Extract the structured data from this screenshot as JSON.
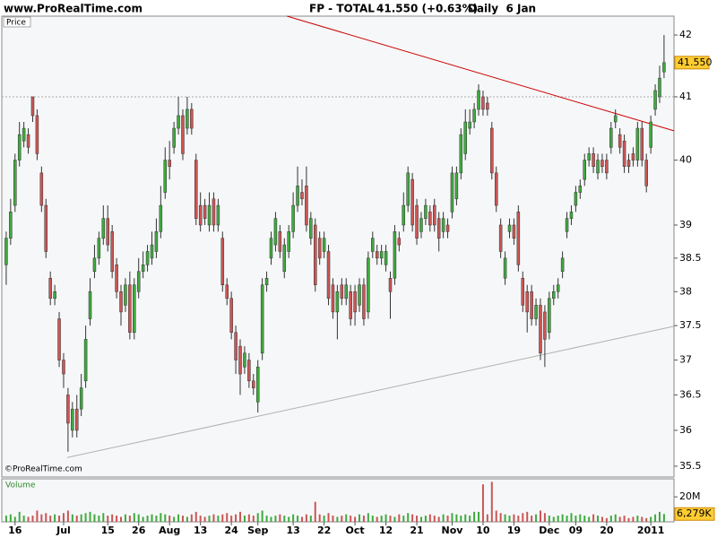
{
  "chart_data": {
    "type": "candlestick",
    "site": "www.ProRealTime.com",
    "title": "FP - TOTAL",
    "quote": "41.550 (+0.63%)",
    "period": "Daily  6 Jan",
    "copyright": "©ProRealTime.com",
    "price_label": "Price",
    "volume_label": "Volume",
    "log_scale": true,
    "up_color": "#3faa3f",
    "down_color": "#cc5555",
    "xlim": [
      -1,
      151.25
    ],
    "xticks": [
      {
        "value": 2,
        "label": "16"
      },
      {
        "value": 13,
        "label": "Jul"
      },
      {
        "value": 23,
        "label": "15"
      },
      {
        "value": 30,
        "label": "26"
      },
      {
        "value": 37,
        "label": "Aug"
      },
      {
        "value": 44,
        "label": "13"
      },
      {
        "value": 51,
        "label": "24"
      },
      {
        "value": 57,
        "label": "Sep"
      },
      {
        "value": 65,
        "label": "13"
      },
      {
        "value": 72,
        "label": "22"
      },
      {
        "value": 79,
        "label": "Oct"
      },
      {
        "value": 86,
        "label": "12"
      },
      {
        "value": 93,
        "label": "21"
      },
      {
        "value": 101,
        "label": "Nov"
      },
      {
        "value": 108,
        "label": "10"
      },
      {
        "value": 115,
        "label": "19"
      },
      {
        "value": 123,
        "label": "Dec"
      },
      {
        "value": 129,
        "label": "09"
      },
      {
        "value": 136,
        "label": "20"
      },
      {
        "value": 146,
        "label": "2011"
      }
    ],
    "ylim": [
      35.35,
      42.31
    ],
    "yticks": [
      35.5,
      36,
      36.5,
      37,
      37.5,
      38,
      38.5,
      39,
      40,
      41,
      42
    ],
    "open": [
      38.4,
      38.8,
      39.3,
      40.0,
      40.3,
      40.4,
      41.0,
      40.7,
      39.8,
      39.3,
      38.2,
      37.9,
      37.6,
      37.0,
      36.5,
      36.0,
      36.3,
      36.3,
      36.7,
      37.6,
      38.3,
      38.5,
      38.8,
      39.1,
      38.9,
      38.4,
      38.0,
      37.8,
      38.1,
      37.4,
      38.0,
      38.3,
      38.4,
      38.5,
      38.6,
      38.9,
      39.5,
      40.0,
      40.2,
      40.5,
      40.7,
      40.5,
      40.8,
      40.0,
      39.3,
      39.3,
      39.0,
      39.4,
      39.0,
      38.8,
      38.1,
      37.9,
      37.4,
      37.2,
      36.9,
      37.0,
      36.7,
      36.4,
      37.1,
      38.1,
      38.5,
      38.7,
      38.9,
      38.3,
      38.6,
      38.9,
      39.3,
      39.5,
      39.6,
      38.8,
      39.0,
      38.8,
      38.6,
      38.6,
      38.1,
      37.7,
      38.1,
      37.9,
      38.0,
      38.0,
      37.8,
      38.1,
      37.7,
      38.6,
      38.6,
      38.5,
      38.4,
      38.2,
      38.2,
      38.8,
      39.0,
      39.3,
      39.7,
      39.3,
      38.9,
      39.1,
      39.2,
      39.3,
      39.1,
      38.9,
      39.0,
      39.2,
      39.4,
      39.8,
      40.1,
      40.5,
      40.6,
      40.8,
      41.0,
      40.9,
      40.5,
      39.8,
      39.0,
      38.2,
      38.9,
      39.0,
      39.2,
      38.2,
      38.0,
      38.0,
      37.6,
      37.8,
      37.7,
      37.4,
      37.9,
      38.0,
      38.3,
      38.9,
      39.1,
      39.3,
      39.5,
      39.7,
      40.0,
      40.1,
      39.8,
      40.0,
      40.0,
      40.2,
      40.6,
      40.4,
      40.3,
      40.0,
      40.1,
      40.0,
      40.5,
      40.0,
      40.2,
      40.8,
      41.0,
      41.4
    ],
    "high": [
      38.9,
      39.4,
      40.1,
      40.6,
      40.6,
      40.5,
      41.0,
      40.8,
      39.9,
      39.4,
      38.3,
      38.1,
      37.7,
      37.1,
      36.6,
      36.4,
      36.5,
      36.8,
      37.5,
      38.2,
      38.7,
      38.9,
      39.3,
      39.3,
      39.0,
      38.5,
      38.1,
      38.2,
      38.3,
      38.2,
      38.5,
      38.6,
      38.7,
      38.9,
      39.1,
      39.6,
      40.2,
      40.3,
      40.6,
      41.0,
      40.8,
      41.0,
      40.9,
      40.1,
      39.5,
      39.4,
      39.5,
      39.5,
      39.4,
      38.9,
      38.2,
      38.0,
      37.5,
      37.3,
      37.2,
      37.1,
      36.8,
      37.0,
      38.2,
      38.3,
      38.9,
      39.2,
      39.0,
      38.8,
      39.0,
      39.5,
      39.9,
      39.7,
      39.9,
      39.2,
      39.1,
      38.9,
      38.9,
      38.7,
      38.2,
      38.1,
      38.2,
      38.2,
      38.1,
      38.1,
      38.2,
      38.2,
      38.6,
      38.9,
      38.7,
      38.7,
      38.7,
      38.3,
      39.0,
      38.9,
      39.5,
      39.9,
      39.8,
      39.4,
      39.2,
      39.4,
      39.3,
      39.4,
      39.2,
      39.2,
      39.1,
      39.9,
      39.9,
      40.5,
      40.8,
      40.8,
      40.9,
      41.2,
      41.1,
      41.0,
      40.6,
      39.9,
      39.1,
      38.6,
      39.1,
      39.1,
      39.3,
      38.3,
      38.1,
      38.1,
      37.9,
      37.9,
      37.8,
      38.0,
      38.1,
      38.2,
      38.6,
      39.2,
      39.3,
      39.6,
      39.7,
      40.1,
      40.2,
      40.2,
      40.1,
      40.1,
      40.1,
      40.6,
      40.8,
      40.5,
      40.4,
      40.1,
      40.2,
      40.6,
      40.6,
      40.1,
      40.7,
      41.2,
      41.5,
      42.0
    ],
    "low": [
      38.1,
      38.7,
      39.2,
      39.9,
      40.2,
      40.1,
      40.6,
      40.0,
      39.2,
      38.5,
      37.8,
      37.8,
      36.9,
      36.6,
      35.7,
      35.9,
      35.9,
      36.2,
      36.6,
      37.5,
      38.2,
      38.4,
      38.7,
      38.6,
      38.2,
      37.9,
      37.5,
      37.7,
      37.3,
      37.3,
      37.9,
      38.2,
      38.3,
      38.4,
      38.5,
      38.8,
      39.4,
      39.7,
      40.1,
      40.4,
      40.0,
      40.4,
      40.4,
      39.0,
      38.9,
      39.0,
      38.9,
      38.9,
      38.9,
      38.0,
      37.8,
      37.3,
      36.8,
      36.5,
      36.8,
      36.6,
      36.5,
      36.25,
      37.0,
      38.0,
      38.4,
      38.6,
      38.5,
      38.2,
      38.5,
      38.8,
      39.2,
      39.3,
      38.9,
      38.7,
      38.0,
      38.4,
      38.5,
      37.8,
      37.6,
      37.3,
      37.8,
      37.8,
      37.5,
      37.5,
      37.7,
      37.5,
      37.6,
      38.5,
      38.4,
      38.4,
      38.3,
      37.6,
      38.1,
      38.6,
      38.9,
      39.2,
      38.9,
      38.7,
      38.8,
      39.0,
      38.9,
      38.9,
      38.6,
      38.8,
      38.8,
      39.1,
      39.3,
      39.7,
      40.0,
      40.4,
      40.5,
      40.7,
      40.7,
      40.7,
      39.7,
      39.2,
      38.5,
      38.1,
      38.8,
      38.7,
      38.3,
      37.7,
      37.4,
      37.5,
      37.5,
      37.0,
      36.9,
      37.3,
      37.8,
      37.9,
      38.2,
      38.8,
      39.0,
      39.2,
      39.4,
      39.6,
      39.9,
      39.8,
      39.7,
      39.8,
      39.7,
      40.1,
      40.5,
      40.1,
      39.8,
      39.8,
      39.9,
      39.9,
      39.9,
      39.5,
      40.1,
      40.7,
      40.9,
      41.3
    ],
    "close": [
      38.8,
      39.2,
      40.0,
      40.4,
      40.5,
      40.2,
      40.7,
      40.1,
      39.3,
      38.6,
      37.9,
      38.0,
      37.0,
      36.8,
      36.1,
      36.3,
      36.0,
      36.6,
      37.3,
      38.0,
      38.5,
      38.8,
      39.1,
      38.7,
      38.3,
      38.0,
      37.7,
      38.1,
      37.4,
      38.1,
      38.3,
      38.4,
      38.6,
      38.7,
      38.9,
      39.3,
      40.0,
      39.9,
      40.5,
      40.7,
      40.1,
      40.8,
      40.5,
      39.1,
      39.0,
      39.1,
      39.3,
      39.0,
      39.3,
      38.1,
      37.9,
      37.4,
      37.0,
      36.8,
      37.1,
      36.7,
      36.6,
      36.9,
      38.1,
      38.2,
      38.8,
      39.1,
      38.6,
      38.7,
      38.9,
      39.3,
      39.6,
      39.4,
      39.0,
      39.1,
      38.1,
      38.5,
      38.8,
      37.9,
      37.7,
      38.0,
      37.9,
      38.1,
      37.6,
      37.7,
      38.1,
      37.6,
      38.5,
      38.8,
      38.5,
      38.6,
      38.6,
      38.0,
      38.9,
      38.7,
      39.3,
      39.8,
      39.0,
      38.8,
      39.1,
      39.3,
      39.0,
      39.0,
      38.8,
      39.1,
      38.9,
      39.8,
      39.8,
      40.4,
      40.6,
      40.6,
      40.8,
      41.1,
      40.8,
      40.8,
      39.8,
      39.3,
      38.6,
      38.5,
      39.0,
      38.8,
      38.4,
      37.8,
      37.7,
      37.6,
      37.8,
      37.1,
      37.3,
      37.9,
      38.0,
      38.1,
      38.5,
      39.1,
      39.2,
      39.5,
      39.6,
      40.0,
      40.1,
      39.9,
      40.0,
      39.9,
      39.8,
      40.5,
      40.7,
      40.2,
      39.9,
      39.9,
      40.0,
      40.5,
      40.0,
      39.6,
      40.6,
      41.1,
      41.3,
      41.55
    ],
    "last_close_label": "41.550",
    "hline": {
      "value": 41,
      "color": "#aaaaaa"
    },
    "trendlines": [
      {
        "color": "#cc0000",
        "x": [
          63.6,
          151.25
        ],
        "y": [
          42.31,
          40.46
        ]
      },
      {
        "color": "#b0b0b0",
        "x": [
          13.8,
          151.25
        ],
        "y": [
          35.62,
          37.49
        ]
      }
    ],
    "volume": {
      "ylim": [
        0,
        33
      ],
      "yticks": [
        {
          "value": 20,
          "label": "20M"
        }
      ],
      "values": [
        5,
        6,
        4,
        8,
        5,
        4,
        5,
        9,
        6,
        7,
        5,
        6,
        5,
        7,
        9,
        6,
        5,
        6,
        7,
        8,
        6,
        5,
        7,
        5,
        6,
        5,
        4,
        6,
        5,
        7,
        6,
        4,
        5,
        6,
        5,
        7,
        6,
        5,
        4,
        6,
        5,
        4,
        6,
        8,
        5,
        4,
        5,
        6,
        5,
        6,
        7,
        5,
        6,
        8,
        5,
        6,
        5,
        7,
        9,
        5,
        4,
        5,
        6,
        5,
        4,
        6,
        5,
        4,
        6,
        5,
        16,
        6,
        5,
        7,
        5,
        4,
        5,
        6,
        5,
        4,
        6,
        5,
        7,
        5,
        4,
        5,
        6,
        5,
        4,
        6,
        5,
        7,
        6,
        5,
        4,
        5,
        6,
        5,
        4,
        6,
        5,
        7,
        6,
        5,
        6,
        5,
        8,
        8,
        30,
        6,
        32,
        9,
        7,
        6,
        5,
        6,
        5,
        7,
        8,
        5,
        6,
        9,
        7,
        5,
        4,
        5,
        6,
        5,
        7,
        5,
        6,
        5,
        4,
        6,
        5,
        4,
        3,
        5,
        6,
        4,
        5,
        3,
        4,
        5,
        4,
        3,
        4,
        6,
        8,
        6.279
      ],
      "last_value_label": "6,279K"
    }
  }
}
